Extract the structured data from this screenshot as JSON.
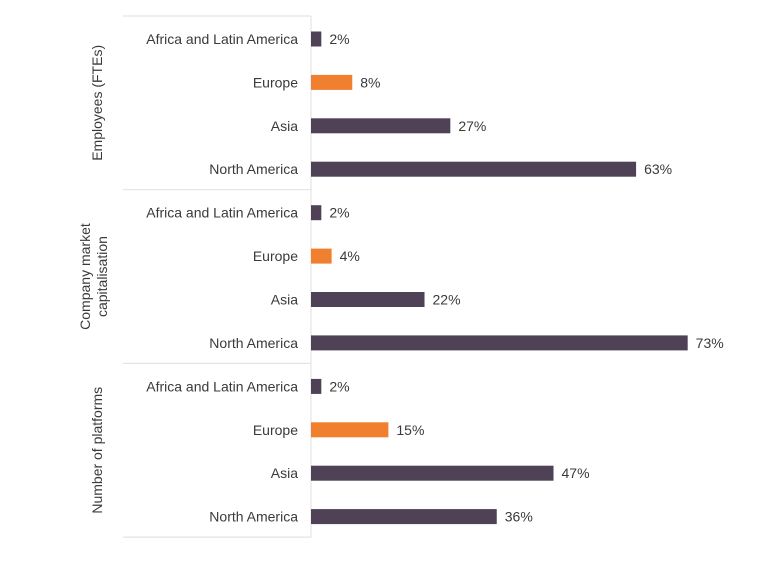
{
  "chart_data": {
    "type": "bar",
    "orientation": "horizontal",
    "unit": "%",
    "xlim": [
      0,
      80
    ],
    "grid": false,
    "colors": {
      "default": "#4f4257",
      "highlight": "#f0802f",
      "divider": "#e4e4e4"
    },
    "groups": [
      {
        "label": "Employees (FTEs)",
        "categories": [
          "Africa and Latin America",
          "Europe",
          "Asia",
          "North America"
        ],
        "values": [
          2,
          8,
          27,
          63
        ],
        "labels": [
          "2%",
          "8%",
          "27%",
          "63%"
        ]
      },
      {
        "label": "Company market capitalisation",
        "label_lines": [
          "Company market",
          "capitalisation"
        ],
        "categories": [
          "Africa and Latin America",
          "Europe",
          "Asia",
          "North America"
        ],
        "values": [
          2,
          4,
          22,
          73
        ],
        "labels": [
          "2%",
          "4%",
          "22%",
          "73%"
        ]
      },
      {
        "label": "Number of platforms",
        "categories": [
          "Africa and Latin America",
          "Europe",
          "Asia",
          "North America"
        ],
        "values": [
          2,
          15,
          47,
          36
        ],
        "labels": [
          "2%",
          "15%",
          "47%",
          "36%"
        ]
      }
    ],
    "highlight_category": "Europe"
  }
}
